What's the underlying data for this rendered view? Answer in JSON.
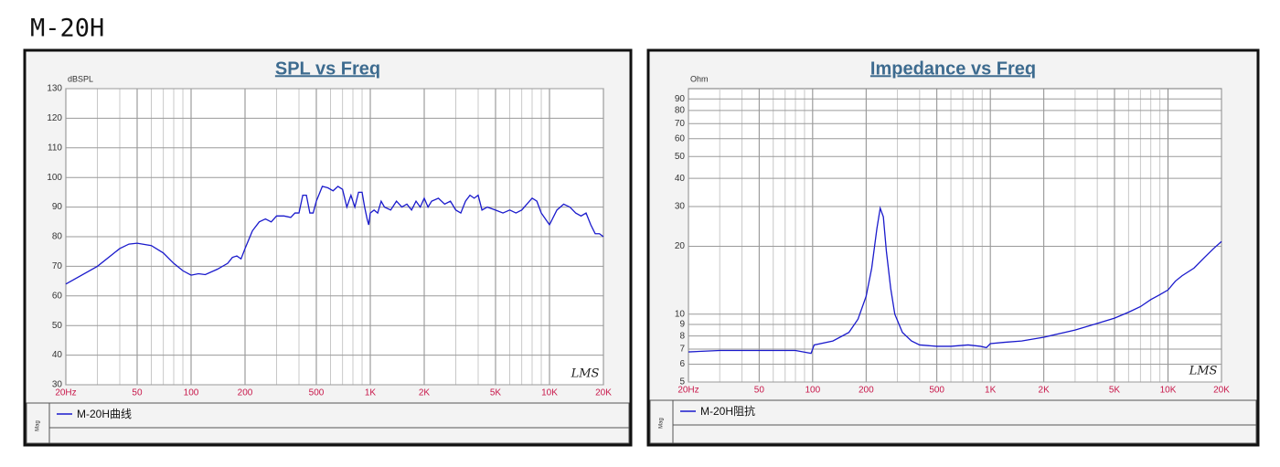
{
  "page_title": "M-20H",
  "chart_data": [
    {
      "type": "line",
      "title": "SPL vs Freq",
      "ylabel": "dBSPL",
      "watermark": "LMS",
      "legend_label": "Mag",
      "xlog": true,
      "ylog": false,
      "grid": true,
      "xlim": [
        20,
        20000
      ],
      "ylim": [
        30,
        130
      ],
      "xticks": [
        {
          "value": 20,
          "label": "20Hz"
        },
        50,
        100,
        200,
        500,
        {
          "value": 1000,
          "label": "1K"
        },
        {
          "value": 2000,
          "label": "2K"
        },
        {
          "value": 5000,
          "label": "5K"
        },
        {
          "value": 10000,
          "label": "10K"
        },
        {
          "value": 20000,
          "label": "20K"
        }
      ],
      "minor_xticks": [
        30,
        40,
        60,
        70,
        80,
        90,
        300,
        400,
        600,
        700,
        800,
        900,
        3000,
        4000,
        6000,
        7000,
        8000,
        9000
      ],
      "yticks": [
        30,
        40,
        50,
        60,
        70,
        80,
        90,
        100,
        110,
        120,
        130
      ],
      "x": [
        20,
        30,
        40,
        45,
        50,
        60,
        70,
        80,
        90,
        100,
        110,
        120,
        140,
        160,
        170,
        180,
        190,
        200,
        220,
        240,
        260,
        280,
        300,
        330,
        360,
        380,
        400,
        420,
        440,
        460,
        480,
        500,
        540,
        580,
        620,
        660,
        700,
        740,
        780,
        820,
        860,
        900,
        930,
        960,
        980,
        1000,
        1050,
        1100,
        1150,
        1200,
        1300,
        1400,
        1500,
        1600,
        1700,
        1800,
        1900,
        2000,
        2100,
        2200,
        2400,
        2600,
        2800,
        3000,
        3200,
        3400,
        3600,
        3800,
        4000,
        4200,
        4500,
        5000,
        5500,
        6000,
        6500,
        7000,
        8000,
        8500,
        9000,
        10000,
        11000,
        12000,
        13000,
        14000,
        15000,
        16000,
        17000,
        18000,
        19000,
        20000
      ],
      "series": [
        {
          "name": "M-20H曲线",
          "color": "#1a1acc",
          "values": [
            64,
            70,
            76,
            77.5,
            77.8,
            77,
            74.5,
            71,
            68.5,
            67,
            67.5,
            67.2,
            69,
            71,
            73,
            73.5,
            72.5,
            76,
            82,
            85,
            86,
            85,
            87,
            87,
            86.5,
            88,
            88,
            94,
            94,
            88,
            88,
            92,
            97,
            96.5,
            95.5,
            97,
            96,
            90,
            94,
            90,
            95,
            95,
            90,
            86,
            84,
            88,
            89,
            88,
            92,
            90,
            89,
            92,
            90,
            91,
            89,
            92,
            90,
            93,
            90,
            92,
            93,
            91,
            92,
            89,
            88,
            92,
            94,
            93,
            94,
            89,
            90,
            89,
            88,
            89,
            88,
            89,
            93,
            92,
            88,
            84,
            89,
            91,
            90,
            88,
            87,
            88,
            84,
            81,
            81,
            80
          ]
        }
      ]
    },
    {
      "type": "line",
      "title": "Impedance vs Freq",
      "ylabel": "Ohm",
      "watermark": "LMS",
      "legend_label": "Mag",
      "xlog": true,
      "ylog": true,
      "grid": true,
      "xlim": [
        20,
        20000
      ],
      "ylim": [
        5,
        100
      ],
      "xticks": [
        {
          "value": 20,
          "label": "20Hz"
        },
        50,
        100,
        200,
        500,
        {
          "value": 1000,
          "label": "1K"
        },
        {
          "value": 2000,
          "label": "2K"
        },
        {
          "value": 5000,
          "label": "5K"
        },
        {
          "value": 10000,
          "label": "10K"
        },
        {
          "value": 20000,
          "label": "20K"
        }
      ],
      "minor_xticks": [
        30,
        40,
        60,
        70,
        80,
        90,
        300,
        400,
        600,
        700,
        800,
        900,
        3000,
        4000,
        6000,
        7000,
        8000,
        9000
      ],
      "yticks": [
        5,
        6,
        7,
        8,
        9,
        10,
        20,
        30,
        40,
        50,
        60,
        70,
        80,
        90
      ],
      "x": [
        20,
        30,
        50,
        80,
        98,
        102,
        130,
        160,
        180,
        200,
        215,
        230,
        240,
        250,
        260,
        275,
        290,
        320,
        360,
        400,
        500,
        600,
        750,
        880,
        950,
        1000,
        1200,
        1500,
        2000,
        3000,
        4000,
        5000,
        6000,
        7000,
        8000,
        9000,
        10000,
        11000,
        12000,
        14000,
        16000,
        18000,
        20000
      ],
      "series": [
        {
          "name": "M-20H阻抗",
          "color": "#1a1acc",
          "values": [
            6.8,
            6.9,
            6.9,
            6.9,
            6.7,
            7.3,
            7.6,
            8.3,
            9.5,
            12,
            16,
            24,
            29.5,
            27,
            19,
            13,
            10,
            8.3,
            7.6,
            7.3,
            7.2,
            7.2,
            7.3,
            7.2,
            7.1,
            7.4,
            7.5,
            7.6,
            7.9,
            8.5,
            9.1,
            9.6,
            10.2,
            10.8,
            11.6,
            12.2,
            12.8,
            14,
            14.8,
            16,
            17.8,
            19.5,
            21
          ]
        }
      ]
    }
  ]
}
